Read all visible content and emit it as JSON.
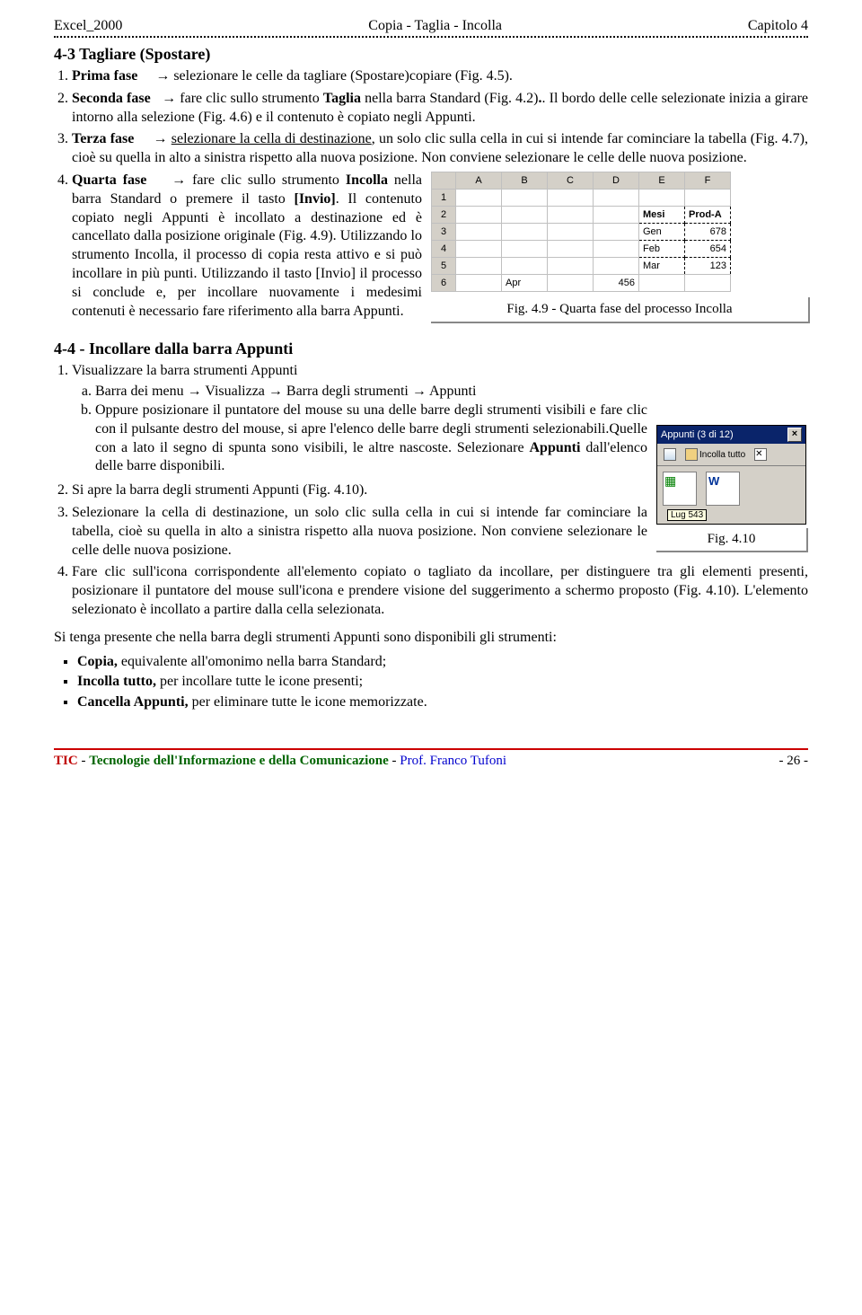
{
  "header": {
    "left": "Excel_2000",
    "center": "Copia - Taglia - Incolla",
    "right": "Capitolo 4"
  },
  "section43": {
    "title": "4-3 Tagliare (Spostare)",
    "step1_lead": "Prima fase",
    "step1_text": "selezionare le celle da tagliare (Spostare)copiare (Fig. 4.5).",
    "step2_lead": "Seconda fase",
    "step2_text_a": "fare clic sullo strumento ",
    "step2_taglia": "Taglia",
    "step2_text_b": " nella barra Standard (Fig. 4.2)",
    "step2_text_c": ". Il bordo delle celle selezionate inizia a girare intorno alla selezione (Fig. 4.6) e il contenuto è copiato negli Appunti.",
    "step3_lead": "Terza fase",
    "step3_text": "selezionare la cella di destinazione, un solo clic sulla cella in cui si intende far cominciare la tabella (Fig. 4.7), cioè su quella in alto a sinistra rispetto alla nuova posizione. Non conviene selezionare le celle delle nuova posizione.",
    "step4_lead": "Quarta fase",
    "step4_text_a": "fare clic sullo strumento ",
    "step4_incolla": "Incolla",
    "step4_text_b": " nella barra Standard o premere il tasto ",
    "step4_invio": "[Invio]",
    "step4_text_c": ". Il contenuto copiato negli Appunti è incollato a destinazione ed è cancellato dalla posizione originale (Fig. 4.9). Utilizzando lo strumento Incolla, il processo di copia resta attivo e si può incollare in più punti. Utilizzando il tasto [Invio] il processo si conclude e, per incollare nuovamente i medesimi contenuti è necessario fare riferimento alla barra Appunti.",
    "fig49_caption": "Fig. 4.9  -  Quarta fase del processo Incolla"
  },
  "sheet": {
    "cols": [
      "A",
      "B",
      "C",
      "D",
      "E",
      "F"
    ],
    "rows": [
      {
        "n": "1",
        "cells": [
          "",
          "",
          "",
          "",
          "",
          ""
        ]
      },
      {
        "n": "2",
        "cells": [
          "",
          "",
          "",
          "",
          "Mesi",
          "Prod-A"
        ],
        "sel": [
          4,
          5
        ],
        "bold": true
      },
      {
        "n": "3",
        "cells": [
          "",
          "",
          "",
          "",
          "Gen",
          "678"
        ],
        "sel": [
          4,
          5
        ]
      },
      {
        "n": "4",
        "cells": [
          "",
          "",
          "",
          "",
          "Feb",
          "654"
        ],
        "sel": [
          4,
          5
        ]
      },
      {
        "n": "5",
        "cells": [
          "",
          "",
          "",
          "",
          "Mar",
          "123"
        ],
        "sel": [
          4,
          5
        ]
      },
      {
        "n": "6",
        "cells": [
          "",
          "Apr",
          "",
          "456",
          "",
          ""
        ]
      }
    ]
  },
  "section44": {
    "title": "4-4 - Incollare dalla barra Appunti",
    "step1": "Visualizzare la barra strumenti Appunti",
    "step1a_pre": "Barra dei menu ",
    "step1a_v": "Visualizza",
    "step1a_mid": " Barra degli strumenti ",
    "step1a_app": "Appunti",
    "step1b": "Oppure posizionare il puntatore del mouse su una delle barre degli strumenti visibili e fare clic con il pulsante destro del mouse, si apre l'elenco delle barre degli strumenti selezionabili.Quelle con a lato il segno di spunta sono visibili, le altre nascoste. Selezionare ",
    "step1b_bold": "Appunti",
    "step1b_end": " dall'elenco delle barre disponibili.",
    "step2": "Si apre la barra degli strumenti Appunti (Fig. 4.10).",
    "step3": "Selezionare la cella di destinazione, un solo clic sulla cella in cui si intende far cominciare la tabella, cioè su quella in alto a sinistra rispetto alla nuova posizione. Non conviene selezionare le celle delle nuova posizione.",
    "step4": "Fare clic sull'icona corrispondente all'elemento copiato o tagliato da incollare, per distinguere tra gli elementi presenti, posizionare il puntatore del mouse sull'icona e prendere visione del suggerimento a schermo proposto (Fig. 4.10). L'elemento selezionato è incollato a partire dalla cella selezionata.",
    "fig410_caption": "Fig. 4.10"
  },
  "clipboard": {
    "title": "Appunti (3 di 12)",
    "paste_all": "Incolla tutto",
    "tooltip": "Lug 543"
  },
  "closing": {
    "intro": "Si tenga presente che nella barra degli strumenti Appunti sono disponibili gli strumenti:",
    "b1_bold": "Copia,",
    "b1": " equivalente all'omonimo nella barra Standard;",
    "b2_bold": "Incolla tutto,",
    "b2": " per incollare tutte le icone presenti;",
    "b3_bold": "Cancella Appunti,",
    "b3": " per eliminare tutte le icone memorizzate."
  },
  "footer": {
    "tic": "TIC",
    "dash": " - ",
    "tech": "Tecnologie dell'Informazione e della Comunicazione",
    "mid": "   -   ",
    "prof": "Prof. Franco Tufoni",
    "page": "- 26 -"
  }
}
